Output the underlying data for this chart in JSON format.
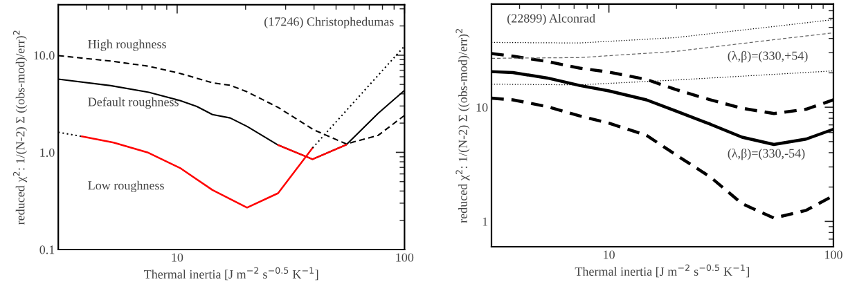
{
  "chart_data": [
    {
      "type": "line",
      "title": "(17246) Christophedumas",
      "xlabel": "Thermal inertia [J m$^{−2}$ s$^{−0.5}$ K$^{−1}$]",
      "ylabel": "reduced χ$^{2}$: 1/(N-2) Σ ((obs-mod)/err)$^{2}$",
      "log": "xy",
      "xlim": [
        3,
        100
      ],
      "ylim": [
        0.1,
        33
      ],
      "xticks": [
        10,
        100
      ],
      "yticks": [
        0.1,
        {
          "value": 1,
          "label": "1.0"
        },
        {
          "value": 10,
          "label": "10.0"
        }
      ],
      "grid": false,
      "legend": false,
      "series": [
        {
          "name": "High roughness",
          "color": "#000000",
          "line_style": "dashed",
          "x": [
            3,
            5.1,
            7.5,
            10.3,
            14.3,
            17.1,
            20.3,
            27.8,
            40,
            55.5,
            76.7,
            100
          ],
          "values": [
            9.9,
            8.7,
            7.7,
            6.5,
            5.2,
            4.9,
            4.2,
            2.9,
            1.7,
            1.22,
            1.5,
            2.4
          ]
        },
        {
          "name": "Default roughness",
          "color": "#000000",
          "line_style": "solid",
          "x": [
            3,
            5.1,
            7.5,
            10.3,
            12.2,
            14.3,
            17.1,
            20.3,
            27.8,
            39.4,
            55.5,
            76.7,
            100
          ],
          "values": [
            5.66,
            4.86,
            4.15,
            3.41,
            2.97,
            2.45,
            2.26,
            1.85,
            1.19,
            0.85,
            1.2,
            2.53,
            4.34
          ]
        },
        {
          "color": "#ff0000",
          "line_style": "solid",
          "x": [
            27.8,
            39.4,
            55.5
          ],
          "values": [
            1.19,
            0.85,
            1.2
          ]
        },
        {
          "color": "#000000",
          "line_style": "dotted",
          "x": [
            3,
            3.8
          ],
          "values": [
            1.61,
            1.46
          ]
        },
        {
          "name": "Low roughness",
          "color": "#ff0000",
          "line_style": "solid",
          "x": [
            3.8,
            5.25,
            7.4,
            10.3,
            14.3,
            20.3,
            27.8,
            39.4
          ],
          "values": [
            1.46,
            1.26,
            1.0,
            0.69,
            0.41,
            0.27,
            0.38,
            1.11
          ]
        },
        {
          "color": "#000000",
          "line_style": "dotted",
          "x": [
            39.4,
            100
          ],
          "values": [
            1.11,
            12.4
          ]
        }
      ]
    },
    {
      "type": "line",
      "title": "(22899) Alconrad",
      "xlabel": "Thermal inertia [J m$^{−2}$ s$^{−0.5}$ K$^{−1}$]",
      "ylabel": "reduced χ$^{2}$: 1/(N-2) Σ ((obs-mod)/err)$^{2}$",
      "log": "xy",
      "xlim": [
        3,
        100
      ],
      "ylim": [
        0.6,
        80
      ],
      "xticks": [
        10,
        100
      ],
      "yticks": [
        1,
        10
      ],
      "grid": false,
      "legend": false,
      "series": [
        {
          "name": "(λ,β)=(330,-54)",
          "color": "#000000",
          "line_style": "solid",
          "x": [
            3,
            3.74,
            5.33,
            7.4,
            10,
            14.7,
            19.8,
            28.3,
            39.2,
            54.3,
            75.5,
            100
          ],
          "values": [
            20.5,
            20.1,
            18.0,
            15.5,
            13.9,
            11.6,
            9.3,
            7.1,
            5.46,
            4.72,
            5.26,
            6.41
          ]
        },
        {
          "color": "#000000",
          "line_style": "dashed",
          "x": [
            3,
            3.74,
            5.33,
            7.4,
            10,
            14.7,
            19.8,
            28.3,
            39.2,
            54.3,
            75.5,
            100
          ],
          "values": [
            29.5,
            28.0,
            25.1,
            22.0,
            20.3,
            17.5,
            14.3,
            11.6,
            9.8,
            8.8,
            9.6,
            11.6
          ]
        },
        {
          "color": "#000000",
          "line_style": "dashed",
          "x": [
            3,
            3.74,
            5.33,
            7.4,
            10,
            14.7,
            19.8,
            28.3,
            39.2,
            54.3,
            75.5,
            100
          ],
          "values": [
            12.0,
            11.6,
            10.1,
            8.4,
            7.25,
            5.67,
            3.85,
            2.45,
            1.43,
            1.07,
            1.25,
            1.68
          ]
        },
        {
          "color": "#000000",
          "line_style": "dotted",
          "x": [
            3,
            7.4,
            19.8,
            54.3,
            100
          ],
          "values": [
            36.9,
            36.5,
            40.7,
            50.9,
            58.5
          ]
        },
        {
          "name": "(λ,β)=(330,+54)",
          "color": "#666666",
          "line_style": "dashed",
          "x": [
            3,
            7.4,
            19.8,
            54.3,
            100
          ],
          "values": [
            26.8,
            27.2,
            30.8,
            39.0,
            44.8
          ]
        },
        {
          "color": "#000000",
          "line_style": "dotted",
          "x": [
            3,
            7.4,
            19.8,
            54.3,
            100
          ],
          "values": [
            15.9,
            15.7,
            17.3,
            19.4,
            20.8
          ]
        }
      ]
    }
  ]
}
